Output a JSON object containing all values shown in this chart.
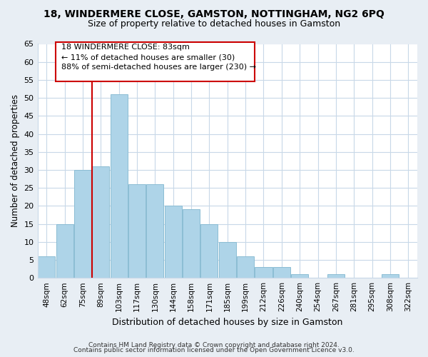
{
  "title": "18, WINDERMERE CLOSE, GAMSTON, NOTTINGHAM, NG2 6PQ",
  "subtitle": "Size of property relative to detached houses in Gamston",
  "xlabel": "Distribution of detached houses by size in Gamston",
  "ylabel": "Number of detached properties",
  "bar_labels": [
    "48sqm",
    "62sqm",
    "75sqm",
    "89sqm",
    "103sqm",
    "117sqm",
    "130sqm",
    "144sqm",
    "158sqm",
    "171sqm",
    "185sqm",
    "199sqm",
    "212sqm",
    "226sqm",
    "240sqm",
    "254sqm",
    "267sqm",
    "281sqm",
    "295sqm",
    "308sqm",
    "322sqm"
  ],
  "bar_values": [
    6,
    15,
    30,
    31,
    51,
    26,
    26,
    20,
    19,
    15,
    10,
    6,
    3,
    3,
    1,
    0,
    1,
    0,
    0,
    1,
    0
  ],
  "bar_color": "#aed4e8",
  "bar_edge_color": "#8bbdd4",
  "vline_x_idx": 3,
  "vline_color": "#cc0000",
  "annotation_line1": "18 WINDERMERE CLOSE: 83sqm",
  "annotation_line2": "← 11% of detached houses are smaller (30)",
  "annotation_line3": "88% of semi-detached houses are larger (230) →",
  "ylim": [
    0,
    65
  ],
  "yticks": [
    0,
    5,
    10,
    15,
    20,
    25,
    30,
    35,
    40,
    45,
    50,
    55,
    60,
    65
  ],
  "footer_line1": "Contains HM Land Registry data © Crown copyright and database right 2024.",
  "footer_line2": "Contains public sector information licensed under the Open Government Licence v3.0.",
  "bg_color": "#e8eef4",
  "plot_bg_color": "#ffffff",
  "grid_color": "#c8d8e8"
}
